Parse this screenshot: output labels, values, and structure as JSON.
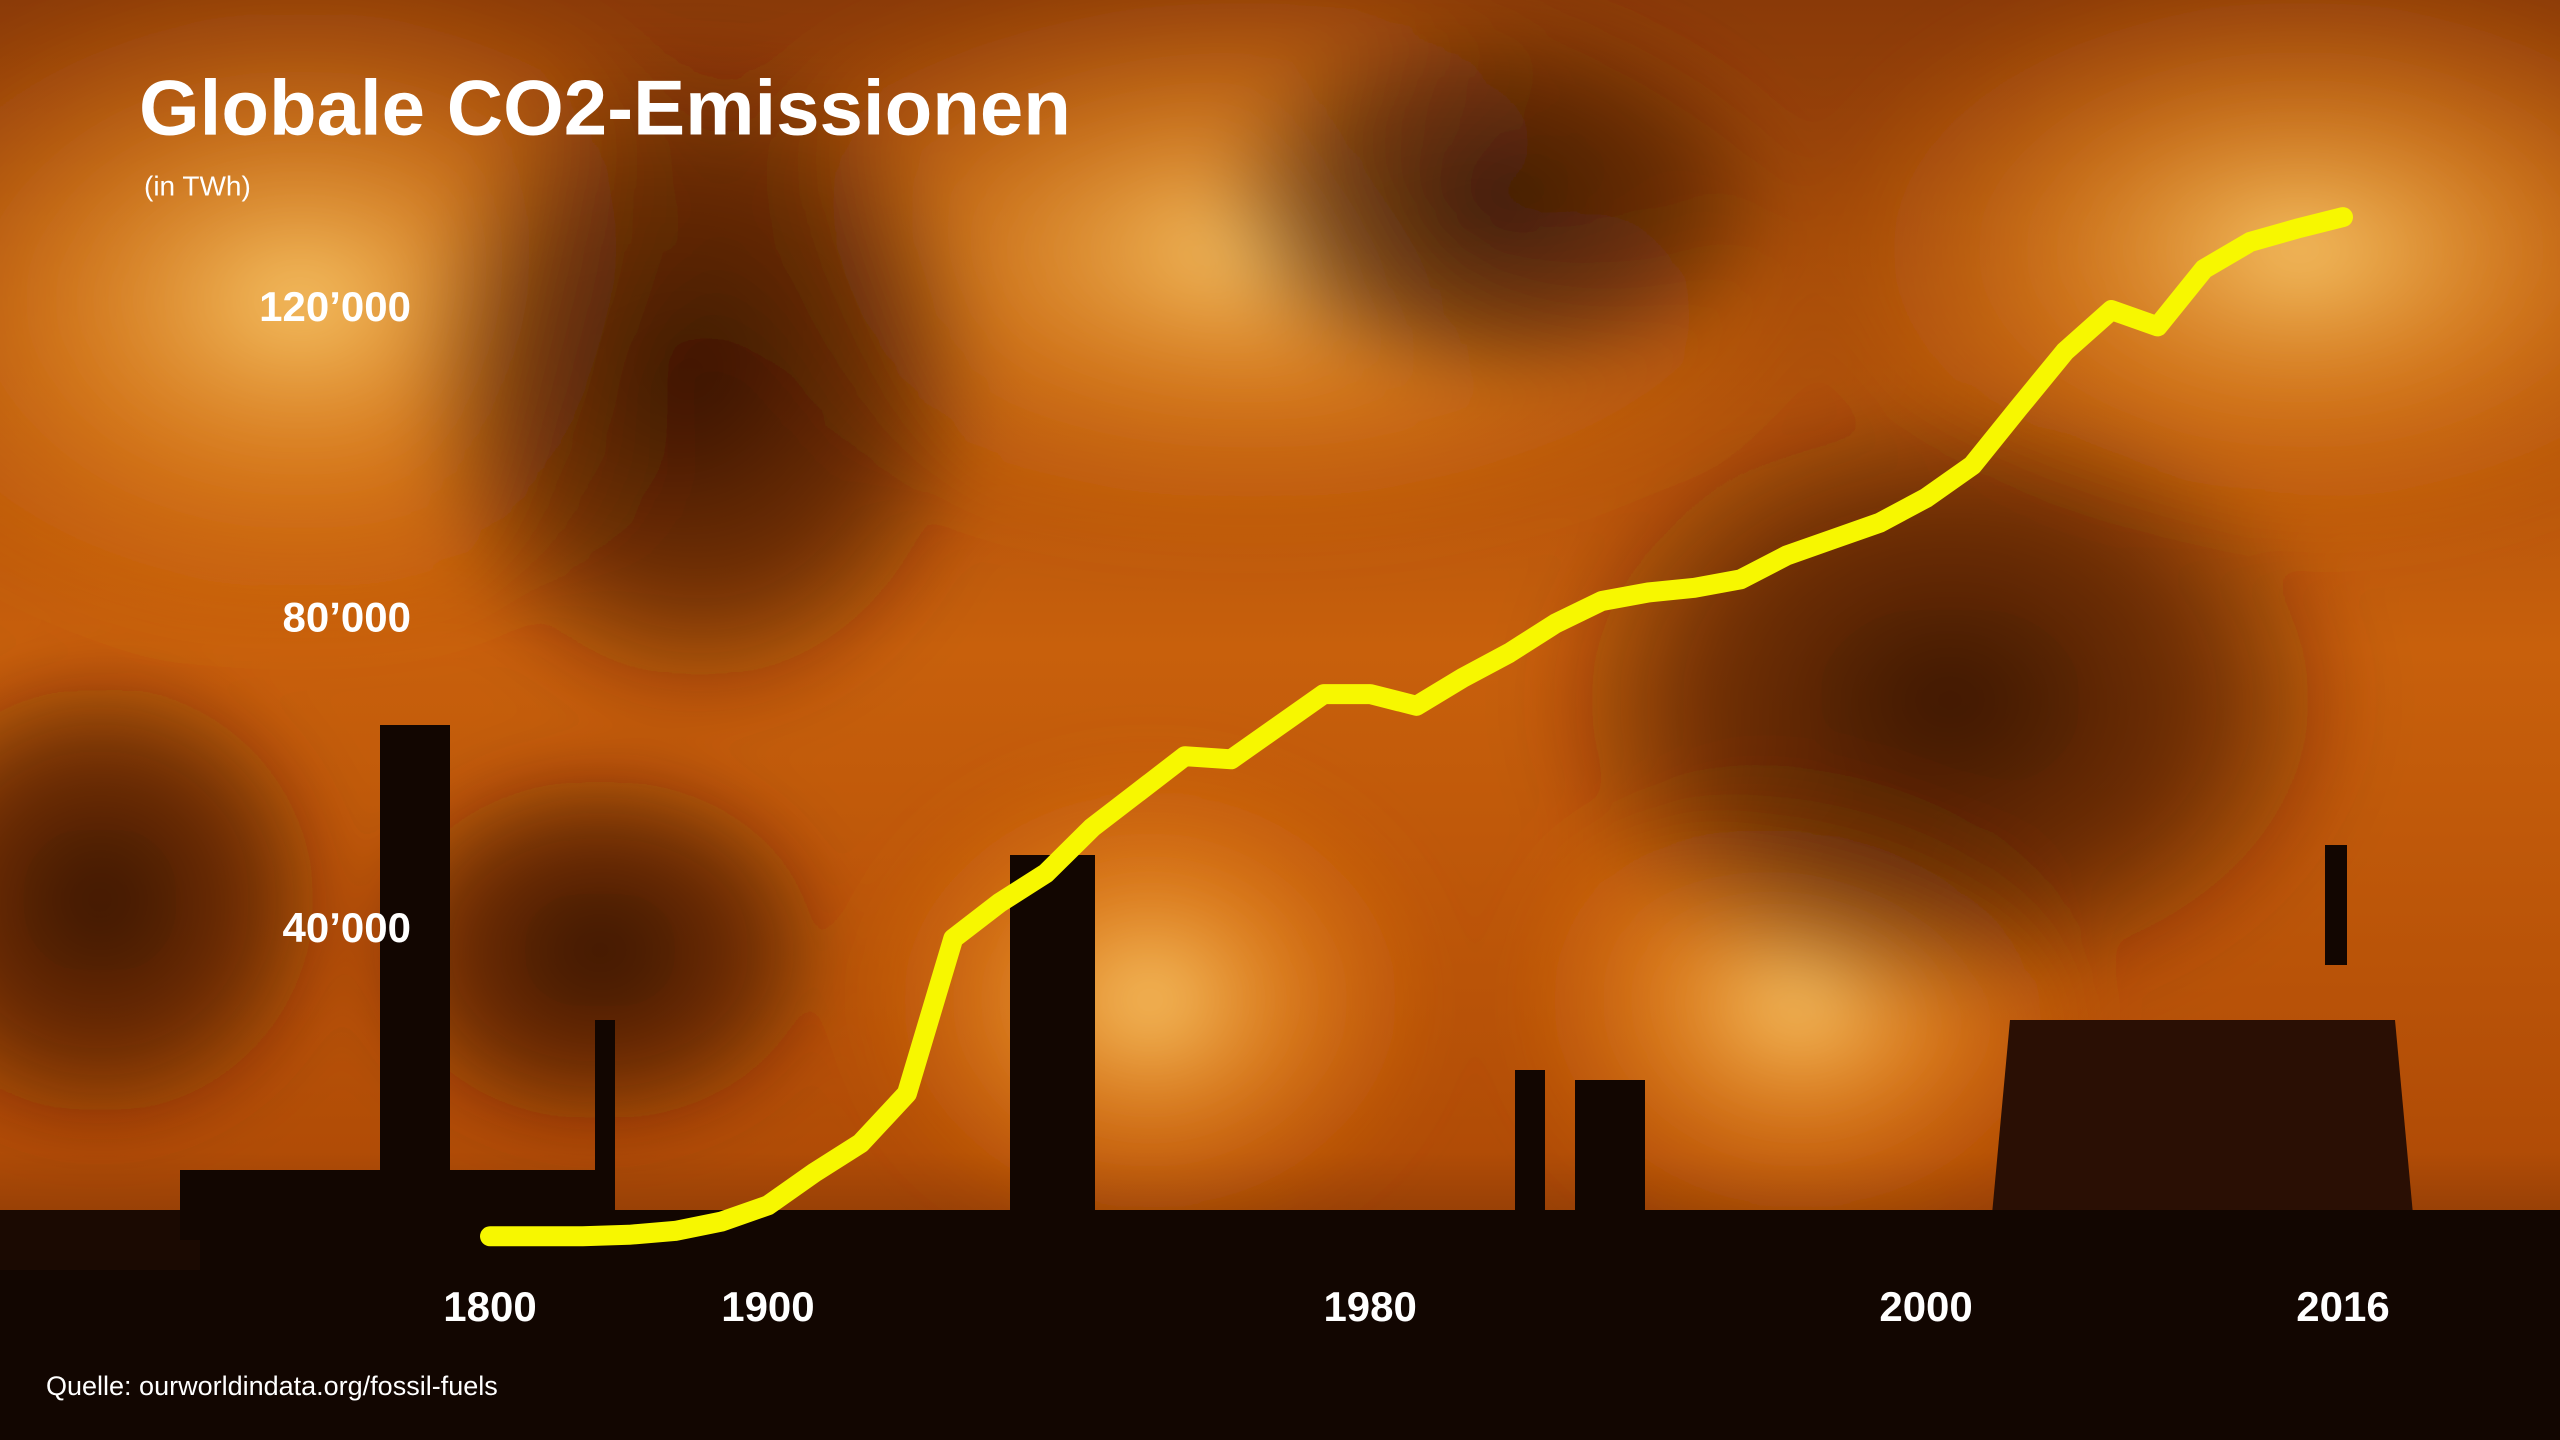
{
  "chart_data": {
    "type": "line",
    "title": "Globale CO2-Emissionen",
    "subtitle": "(in TWh)",
    "source": "Quelle: ourworldindata.org/fossil-fuels",
    "categories": [
      "1800",
      null,
      null,
      null,
      null,
      null,
      "1900",
      null,
      null,
      null,
      null,
      null,
      null,
      null,
      null,
      null,
      null,
      null,
      null,
      "1980",
      null,
      null,
      null,
      null,
      null,
      null,
      null,
      null,
      null,
      null,
      null,
      "2000",
      null,
      null,
      null,
      null,
      null,
      null,
      null,
      null,
      "2016"
    ],
    "series": [
      {
        "name": "CO2-Emissionen",
        "color": "#f7f700",
        "values": [
          600,
          600,
          600,
          800,
          1300,
          2500,
          4600,
          8800,
          12600,
          19000,
          39000,
          43600,
          47400,
          53300,
          57900,
          62500,
          62100,
          66300,
          70500,
          70500,
          69000,
          72600,
          75800,
          79600,
          82500,
          83600,
          84200,
          85300,
          88400,
          90500,
          92600,
          95800,
          100000,
          107400,
          114700,
          120000,
          117900,
          125300,
          128800,
          130500,
          132000
        ]
      }
    ],
    "ylim": [
      0,
      140000
    ],
    "yticks": [
      {
        "value": 40000,
        "label": "40’000"
      },
      {
        "value": 80000,
        "label": "80’000"
      },
      {
        "value": 120000,
        "label": "120’000"
      }
    ]
  }
}
